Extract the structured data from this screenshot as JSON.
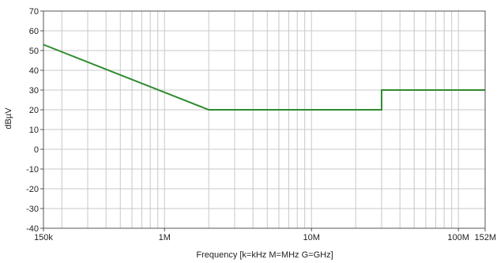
{
  "chart_data": {
    "type": "line",
    "title": "",
    "xlabel": "Frequency [k=kHz M=MHz G=GHz]",
    "ylabel": "dBµV",
    "x_scale": "log",
    "xlim": [
      150000,
      152000000
    ],
    "ylim": [
      -40,
      70
    ],
    "grid": true,
    "legend": "none",
    "y_ticks": [
      70,
      60,
      50,
      40,
      30,
      20,
      10,
      0,
      -10,
      -20,
      -30,
      -40
    ],
    "x_tick_labels": [
      {
        "value": 150000,
        "label": "150k"
      },
      {
        "value": 1000000,
        "label": "1M"
      },
      {
        "value": 10000000,
        "label": "10M"
      },
      {
        "value": 100000000,
        "label": "100M"
      },
      {
        "value": 152000000,
        "label": "152M"
      }
    ],
    "series": [
      {
        "color": "#2e8b2e",
        "points": [
          [
            150000,
            53
          ],
          [
            2000000,
            20
          ],
          [
            30000000,
            20
          ],
          [
            30000000,
            30
          ],
          [
            152000000,
            30
          ]
        ]
      }
    ],
    "colors": {
      "axis": "#555555",
      "grid": "#c8c8c8",
      "text": "#222222"
    }
  }
}
